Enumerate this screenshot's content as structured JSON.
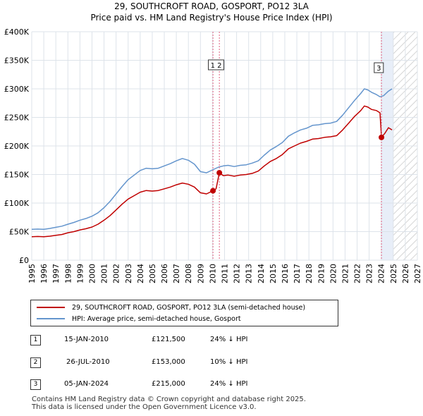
{
  "title": {
    "line1": "29, SOUTHCROFT ROAD, GOSPORT, PO12 3LA",
    "line2": "Price paid vs. HM Land Registry's House Price Index (HPI)"
  },
  "colors": {
    "price": "#c00000",
    "hpi": "#6495cd",
    "marker_line": "#e06080",
    "shade": "#e8eef8",
    "grid": "#dde3ea"
  },
  "chart_data": {
    "type": "line",
    "title": "Price paid vs. HM Land Registry's House Price Index (HPI)",
    "xlabel": "",
    "ylabel": "",
    "xlim": [
      1995,
      2027
    ],
    "ylim": [
      0,
      400000
    ],
    "y_ticks": [
      {
        "value": 0,
        "label": "£0"
      },
      {
        "value": 50000,
        "label": "£50K"
      },
      {
        "value": 100000,
        "label": "£100K"
      },
      {
        "value": 150000,
        "label": "£150K"
      },
      {
        "value": 200000,
        "label": "£200K"
      },
      {
        "value": 250000,
        "label": "£250K"
      },
      {
        "value": 300000,
        "label": "£300K"
      },
      {
        "value": 350000,
        "label": "£350K"
      },
      {
        "value": 400000,
        "label": "£400K"
      }
    ],
    "x_ticks": [
      "1995",
      "1996",
      "1997",
      "1998",
      "1999",
      "2000",
      "2001",
      "2002",
      "2003",
      "2004",
      "2005",
      "2006",
      "2007",
      "2008",
      "2009",
      "2010",
      "2011",
      "2012",
      "2013",
      "2014",
      "2015",
      "2016",
      "2017",
      "2018",
      "2019",
      "2020",
      "2021",
      "2022",
      "2023",
      "2024",
      "2025",
      "2026",
      "2027"
    ],
    "grid": true,
    "hatched_future_from": 2025.0,
    "shaded_from": 2024.02,
    "series": [
      {
        "name": "29, SOUTHCROFT ROAD, GOSPORT, PO12 3LA (semi-detached house)",
        "color": "#c00000",
        "points": [
          [
            1995.0,
            41000
          ],
          [
            1995.5,
            41500
          ],
          [
            1996.0,
            41000
          ],
          [
            1996.5,
            42000
          ],
          [
            1997.0,
            43500
          ],
          [
            1997.5,
            45000
          ],
          [
            1998.0,
            48000
          ],
          [
            1998.5,
            50000
          ],
          [
            1999.0,
            53000
          ],
          [
            1999.5,
            55000
          ],
          [
            2000.0,
            58000
          ],
          [
            2000.5,
            63000
          ],
          [
            2001.0,
            70000
          ],
          [
            2001.5,
            78000
          ],
          [
            2002.0,
            88000
          ],
          [
            2002.5,
            98000
          ],
          [
            2003.0,
            107000
          ],
          [
            2003.5,
            113000
          ],
          [
            2004.0,
            119000
          ],
          [
            2004.5,
            122000
          ],
          [
            2005.0,
            121000
          ],
          [
            2005.5,
            122000
          ],
          [
            2006.0,
            125000
          ],
          [
            2006.5,
            128000
          ],
          [
            2007.0,
            132000
          ],
          [
            2007.5,
            135000
          ],
          [
            2008.0,
            133000
          ],
          [
            2008.5,
            128000
          ],
          [
            2009.0,
            118000
          ],
          [
            2009.5,
            116000
          ],
          [
            2010.04,
            121500
          ],
          [
            2010.3,
            125000
          ],
          [
            2010.57,
            153000
          ],
          [
            2010.9,
            148000
          ],
          [
            2011.3,
            149000
          ],
          [
            2011.8,
            147000
          ],
          [
            2012.3,
            149000
          ],
          [
            2012.8,
            150000
          ],
          [
            2013.3,
            152000
          ],
          [
            2013.8,
            156000
          ],
          [
            2014.3,
            165000
          ],
          [
            2014.8,
            173000
          ],
          [
            2015.3,
            178000
          ],
          [
            2015.8,
            185000
          ],
          [
            2016.3,
            195000
          ],
          [
            2016.8,
            200000
          ],
          [
            2017.3,
            205000
          ],
          [
            2017.8,
            208000
          ],
          [
            2018.3,
            212000
          ],
          [
            2018.8,
            213000
          ],
          [
            2019.3,
            215000
          ],
          [
            2019.8,
            216000
          ],
          [
            2020.3,
            218000
          ],
          [
            2020.8,
            228000
          ],
          [
            2021.3,
            240000
          ],
          [
            2021.8,
            252000
          ],
          [
            2022.3,
            262000
          ],
          [
            2022.6,
            270000
          ],
          [
            2022.9,
            268000
          ],
          [
            2023.2,
            264000
          ],
          [
            2023.6,
            262000
          ],
          [
            2023.9,
            258000
          ],
          [
            2024.02,
            215000
          ],
          [
            2024.3,
            222000
          ],
          [
            2024.6,
            232000
          ],
          [
            2024.9,
            228000
          ]
        ]
      },
      {
        "name": "HPI: Average price, semi-detached house, Gosport",
        "color": "#6495cd",
        "points": [
          [
            1995.0,
            54000
          ],
          [
            1995.5,
            54500
          ],
          [
            1996.0,
            54000
          ],
          [
            1996.5,
            55500
          ],
          [
            1997.0,
            57500
          ],
          [
            1997.5,
            59500
          ],
          [
            1998.0,
            63000
          ],
          [
            1998.5,
            66000
          ],
          [
            1999.0,
            70000
          ],
          [
            1999.5,
            73000
          ],
          [
            2000.0,
            77000
          ],
          [
            2000.5,
            83000
          ],
          [
            2001.0,
            92000
          ],
          [
            2001.5,
            103000
          ],
          [
            2002.0,
            116000
          ],
          [
            2002.5,
            129000
          ],
          [
            2003.0,
            141000
          ],
          [
            2003.5,
            149000
          ],
          [
            2004.0,
            157000
          ],
          [
            2004.5,
            161000
          ],
          [
            2005.0,
            160000
          ],
          [
            2005.5,
            161000
          ],
          [
            2006.0,
            165000
          ],
          [
            2006.5,
            169000
          ],
          [
            2007.0,
            174000
          ],
          [
            2007.5,
            178000
          ],
          [
            2008.0,
            175000
          ],
          [
            2008.5,
            168000
          ],
          [
            2009.0,
            155000
          ],
          [
            2009.5,
            153000
          ],
          [
            2010.0,
            158000
          ],
          [
            2010.5,
            163000
          ],
          [
            2010.9,
            165000
          ],
          [
            2011.3,
            166000
          ],
          [
            2011.8,
            164000
          ],
          [
            2012.3,
            166000
          ],
          [
            2012.8,
            167000
          ],
          [
            2013.3,
            170000
          ],
          [
            2013.8,
            174000
          ],
          [
            2014.3,
            184000
          ],
          [
            2014.8,
            193000
          ],
          [
            2015.3,
            199000
          ],
          [
            2015.8,
            206000
          ],
          [
            2016.3,
            217000
          ],
          [
            2016.8,
            223000
          ],
          [
            2017.3,
            228000
          ],
          [
            2017.8,
            231000
          ],
          [
            2018.3,
            236000
          ],
          [
            2018.8,
            237000
          ],
          [
            2019.3,
            239000
          ],
          [
            2019.8,
            240000
          ],
          [
            2020.3,
            243000
          ],
          [
            2020.8,
            254000
          ],
          [
            2021.3,
            267000
          ],
          [
            2021.8,
            280000
          ],
          [
            2022.3,
            292000
          ],
          [
            2022.6,
            300000
          ],
          [
            2022.9,
            298000
          ],
          [
            2023.2,
            294000
          ],
          [
            2023.6,
            290000
          ],
          [
            2023.9,
            286000
          ],
          [
            2024.2,
            288000
          ],
          [
            2024.6,
            296000
          ],
          [
            2024.9,
            300000
          ]
        ]
      }
    ],
    "sales": [
      {
        "label": "1",
        "x": 2010.04,
        "y": 121500
      },
      {
        "label": "2",
        "x": 2010.57,
        "y": 153000
      },
      {
        "label": "3",
        "x": 2024.02,
        "y": 215000
      }
    ],
    "marker_labels": [
      {
        "text": "1 2",
        "x": 2010.3,
        "y": 342000
      },
      {
        "text": "3",
        "x": 2023.8,
        "y": 337000
      }
    ]
  },
  "legend": {
    "price_label": "29, SOUTHCROFT ROAD, GOSPORT, PO12 3LA (semi-detached house)",
    "hpi_label": "HPI: Average price, semi-detached house, Gosport"
  },
  "transactions": [
    {
      "num": "1",
      "date": "15-JAN-2010",
      "price": "£121,500",
      "hpi": "24% ↓ HPI"
    },
    {
      "num": "2",
      "date": "26-JUL-2010",
      "price": "£153,000",
      "hpi": "10% ↓ HPI"
    },
    {
      "num": "3",
      "date": "05-JAN-2024",
      "price": "£215,000",
      "hpi": "24% ↓ HPI"
    }
  ],
  "footer": {
    "line1": "Contains HM Land Registry data © Crown copyright and database right 2025.",
    "line2": "This data is licensed under the Open Government Licence v3.0."
  }
}
